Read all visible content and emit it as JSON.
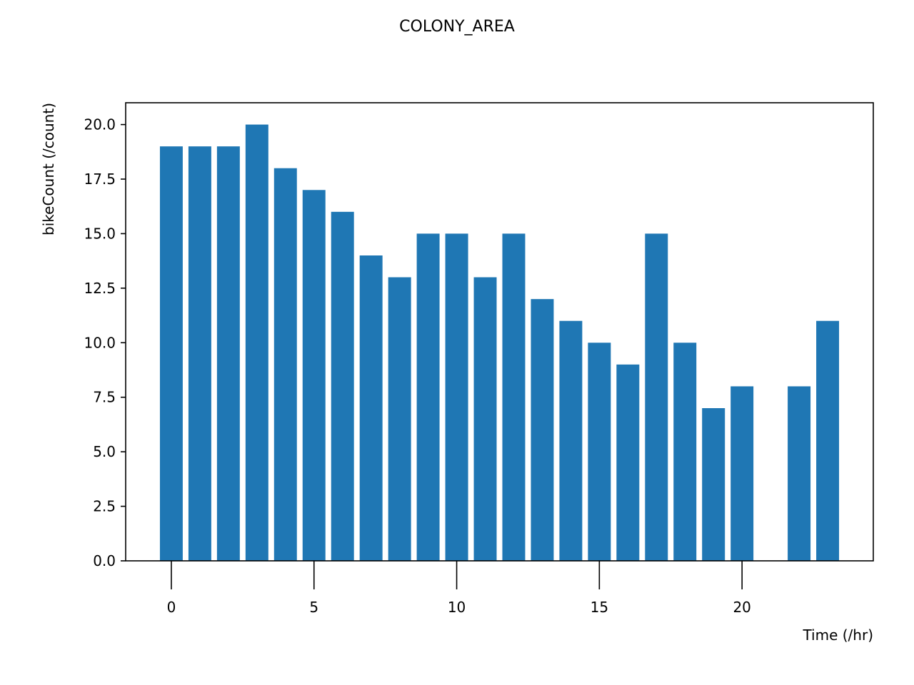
{
  "chart_data": {
    "type": "bar",
    "title": "COLONY_AREA",
    "xlabel": "Time (/hr)",
    "ylabel": "bikeCount (/count)",
    "x": [
      0,
      1,
      2,
      3,
      4,
      5,
      6,
      7,
      8,
      9,
      10,
      11,
      12,
      13,
      14,
      15,
      16,
      17,
      18,
      19,
      20,
      22,
      23
    ],
    "values": [
      19,
      19,
      19,
      20,
      18,
      17,
      16,
      14,
      13,
      15,
      15,
      13,
      15,
      12,
      11,
      10,
      9,
      15,
      10,
      7,
      8,
      8,
      11
    ],
    "xlim": [
      -1.6,
      24.6
    ],
    "ylim": [
      0,
      21
    ],
    "xticks": [
      0,
      5,
      10,
      15,
      20
    ],
    "xtick_labels": [
      "0",
      "5",
      "10",
      "15",
      "20"
    ],
    "yticks": [
      0,
      2.5,
      5,
      7.5,
      10,
      12.5,
      15,
      17.5,
      20
    ],
    "ytick_labels": [
      "0.0",
      "2.5",
      "5.0",
      "7.5",
      "10.0",
      "12.5",
      "15.0",
      "17.5",
      "20.0"
    ],
    "bar_color": "#1f77b4",
    "grid": false,
    "legend": "none"
  }
}
